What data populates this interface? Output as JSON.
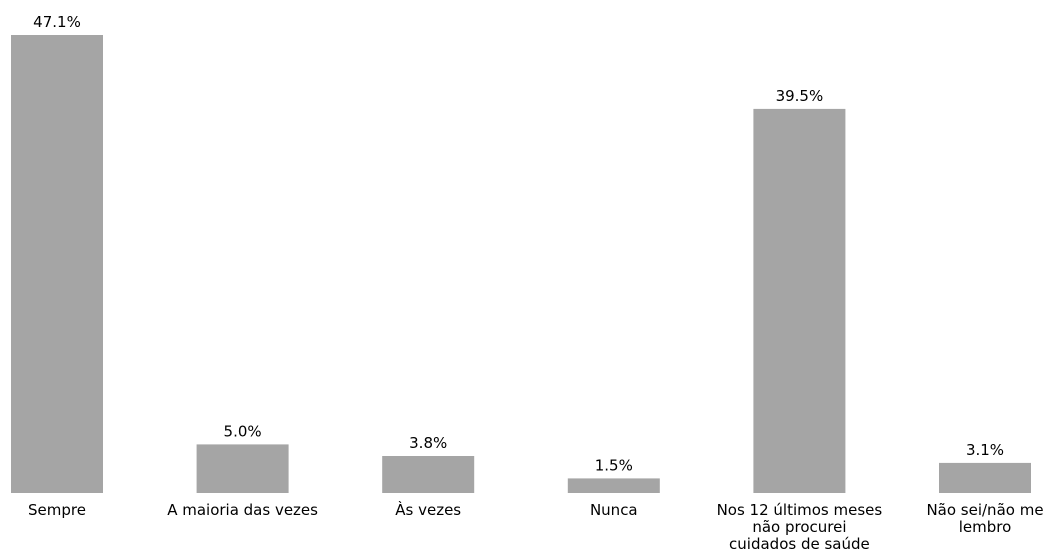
{
  "chart_data": {
    "type": "bar",
    "categories": [
      [
        "Sempre"
      ],
      [
        "A maioria das vezes"
      ],
      [
        "Às vezes"
      ],
      [
        "Nunca"
      ],
      [
        "Nos 12 últimos meses",
        "não procurei",
        "cuidados de saúde"
      ],
      [
        "Não sei/não me",
        "lembro"
      ]
    ],
    "values": [
      47.1,
      5.0,
      3.8,
      1.5,
      39.5,
      3.1
    ],
    "value_labels": [
      "47.1%",
      "5.0%",
      "3.8%",
      "1.5%",
      "39.5%",
      "3.1%"
    ],
    "ylim": [
      0,
      47.1
    ],
    "grid": false,
    "bar_color": "#a5a5a5"
  }
}
